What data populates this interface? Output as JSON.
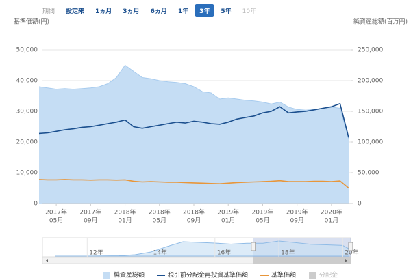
{
  "period_selector": {
    "label": "期間",
    "buttons": [
      "設定来",
      "1ヵ月",
      "3ヵ月",
      "6ヵ月",
      "1年",
      "3年",
      "5年",
      "10年"
    ],
    "active": 5,
    "disabled": [
      7
    ]
  },
  "chart_data": [
    {
      "type": "combo",
      "ylabel": "基準価額(円)",
      "y2label": "純資産総額(百万円)",
      "x": [
        "2017-03",
        "2017-04",
        "2017-05",
        "2017-06",
        "2017-07",
        "2017-08",
        "2017-09",
        "2017-10",
        "2017-11",
        "2017-12",
        "2018-01",
        "2018-02",
        "2018-03",
        "2018-04",
        "2018-05",
        "2018-06",
        "2018-07",
        "2018-08",
        "2018-09",
        "2018-10",
        "2018-11",
        "2018-12",
        "2019-01",
        "2019-02",
        "2019-03",
        "2019-04",
        "2019-05",
        "2019-06",
        "2019-07",
        "2019-08",
        "2019-09",
        "2019-10",
        "2019-11",
        "2019-12",
        "2020-01",
        "2020-02",
        "2020-03"
      ],
      "xticks": [
        {
          "value": "2017-05",
          "label": [
            "2017年",
            "05月"
          ]
        },
        {
          "value": "2017-09",
          "label": [
            "2017年",
            "09月"
          ]
        },
        {
          "value": "2018-01",
          "label": [
            "2018年",
            "01月"
          ]
        },
        {
          "value": "2018-05",
          "label": [
            "2018年",
            "05月"
          ]
        },
        {
          "value": "2018-09",
          "label": [
            "2018年",
            "09月"
          ]
        },
        {
          "value": "2019-01",
          "label": [
            "2019年",
            "01月"
          ]
        },
        {
          "value": "2019-05",
          "label": [
            "2019年",
            "05月"
          ]
        },
        {
          "value": "2019-09",
          "label": [
            "2019年",
            "09月"
          ]
        },
        {
          "value": "2020-01",
          "label": [
            "2020年",
            "01月"
          ]
        }
      ],
      "ylim": [
        0,
        55000
      ],
      "yticks": [
        0,
        {
          "value": 10000,
          "label": "10,000"
        },
        {
          "value": 20000,
          "label": "20,000"
        },
        {
          "value": 30000,
          "label": "30,000"
        },
        {
          "value": 40000,
          "label": "40,000"
        },
        {
          "value": 50000,
          "label": "50,000"
        }
      ],
      "y2lim": [
        0,
        275000
      ],
      "y2ticks": [
        0,
        {
          "value": 50000,
          "label": "50,000"
        },
        {
          "value": 100000,
          "label": "100,000"
        },
        {
          "value": 150000,
          "label": "150,000"
        },
        {
          "value": 200000,
          "label": "200,000"
        },
        {
          "value": 250000,
          "label": "250,000"
        }
      ],
      "grid": true,
      "series": [
        {
          "name": "純資産総額",
          "type": "area",
          "axis": "y2",
          "color": "#c5ddf4",
          "values": [
            190000,
            188000,
            186000,
            187000,
            186000,
            187000,
            188000,
            190000,
            195000,
            205000,
            225000,
            215000,
            205000,
            203000,
            200000,
            198000,
            197000,
            195000,
            190000,
            182000,
            180000,
            170000,
            172000,
            170000,
            168000,
            167000,
            165000,
            162000,
            165000,
            157000,
            153000,
            152000,
            153000,
            155000,
            157000,
            155000,
            105000
          ]
        },
        {
          "name": "税引前分配金再投資基準価額",
          "type": "line",
          "color": "#1b4f8e",
          "values": [
            22800,
            23000,
            23500,
            24000,
            24300,
            24800,
            25000,
            25500,
            26000,
            26500,
            27200,
            25000,
            24500,
            25000,
            25500,
            26000,
            26500,
            26200,
            26800,
            26500,
            26000,
            25800,
            26500,
            27500,
            28000,
            28500,
            29500,
            30000,
            31500,
            29500,
            29800,
            30000,
            30500,
            31000,
            31500,
            32500,
            21500
          ]
        },
        {
          "name": "基準価額",
          "type": "line",
          "color": "#e8963a",
          "values": [
            7800,
            7700,
            7700,
            7800,
            7700,
            7700,
            7600,
            7700,
            7700,
            7600,
            7700,
            7200,
            7000,
            7100,
            7000,
            6900,
            6900,
            6800,
            6700,
            6600,
            6500,
            6400,
            6600,
            6800,
            6900,
            7000,
            7100,
            7200,
            7400,
            7100,
            7100,
            7100,
            7200,
            7200,
            7100,
            7300,
            5000
          ]
        },
        {
          "name": "分配金",
          "type": "column",
          "color": "#c8c8c8",
          "visible": false,
          "values": [
            null,
            null,
            null,
            null,
            null,
            null,
            null,
            null,
            null,
            null,
            null,
            null,
            null,
            null,
            null,
            null,
            null,
            null,
            null,
            null,
            null,
            null,
            null,
            null,
            null,
            null,
            null,
            null,
            null,
            null,
            null,
            null,
            null,
            null,
            null,
            null,
            null
          ]
        }
      ]
    },
    {
      "type": "area",
      "x": [
        2011,
        2012,
        2013,
        2013.5,
        2014,
        2014.5,
        2015,
        2015.5,
        2016,
        2016.5,
        2017,
        2017.5,
        2018,
        2018.5,
        2019,
        2019.5,
        2020,
        2020.2
      ],
      "values": [
        0,
        0,
        5000,
        20000,
        60000,
        140000,
        210000,
        200000,
        190000,
        175000,
        188000,
        187000,
        220000,
        198000,
        172000,
        165000,
        156000,
        105000
      ],
      "color": "#c5ddf4",
      "xlim": [
        2010.6,
        2020.25
      ],
      "ylim": [
        0,
        250000
      ],
      "xticks": [
        {
          "value": 2012,
          "label": "12年"
        },
        {
          "value": 2014,
          "label": "14年"
        },
        {
          "value": 2016,
          "label": "16年"
        },
        {
          "value": 2018,
          "label": "18年"
        },
        {
          "value": 2020,
          "label": "20年"
        }
      ],
      "selection": [
        2017.2,
        2020.25
      ]
    }
  ]
}
